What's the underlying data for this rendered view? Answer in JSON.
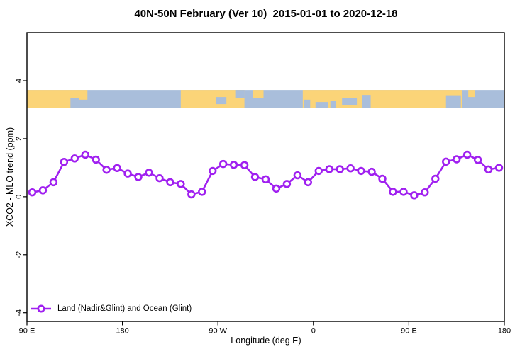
{
  "chart_data": {
    "type": "line",
    "title": "40N-50N February (Ver 10)  2015-01-01 to 2020-12-18",
    "xlabel": "Longitude (deg E)",
    "ylabel": "XCO2 - MLO trend (ppm)",
    "xlim": [
      90,
      540
    ],
    "ylim": [
      -4.3,
      5.66
    ],
    "grid": false,
    "x_ticks": [
      {
        "deg": 90,
        "label": "90 E"
      },
      {
        "deg": 180,
        "label": "180"
      },
      {
        "deg": 270,
        "label": "90 W"
      },
      {
        "deg": 360,
        "label": "0"
      },
      {
        "deg": 450,
        "label": "90 E"
      },
      {
        "deg": 540,
        "label": "180"
      }
    ],
    "y_ticks": [
      -4,
      -2,
      0,
      2,
      4
    ],
    "legend": {
      "label": "Land (Nadir&Glint) and Ocean (Glint)",
      "position": "bottom-left"
    },
    "series": [
      {
        "name": "Land (Nadir&Glint) and Ocean (Glint)",
        "color": "#A020F0",
        "marker": "open-circle",
        "x": [
          95,
          105,
          115,
          125,
          135,
          145,
          155,
          165,
          175,
          185,
          195,
          205,
          215,
          225,
          235,
          245,
          255,
          265,
          275,
          285,
          295,
          305,
          315,
          325,
          335,
          345,
          355,
          365,
          375,
          385,
          395,
          405,
          415,
          425,
          435,
          445,
          455,
          465,
          475,
          485,
          495,
          505,
          515,
          525,
          535
        ],
        "y": [
          0.15,
          0.22,
          0.5,
          1.2,
          1.32,
          1.45,
          1.28,
          0.93,
          0.99,
          0.8,
          0.68,
          0.83,
          0.64,
          0.5,
          0.44,
          0.08,
          0.17,
          0.89,
          1.13,
          1.1,
          1.09,
          0.68,
          0.6,
          0.28,
          0.44,
          0.74,
          0.5,
          0.89,
          0.95,
          0.95,
          0.98,
          0.89,
          0.86,
          0.62,
          0.17,
          0.17,
          0.05,
          0.15,
          0.62,
          1.21,
          1.29,
          1.45,
          1.27,
          0.94,
          1.0
        ]
      }
    ],
    "map_strip": {
      "value_top": 3.68,
      "value_bottom": 3.07,
      "ocean_color": "#A9BEDB",
      "land_color": "#FBD478",
      "land_segments_deg": [
        [
          90,
          139
        ],
        [
          235,
          295
        ],
        [
          350,
          500
        ]
      ],
      "ocean_patches_deg": [
        [
          131,
          139,
          45,
          55
        ],
        [
          268,
          278,
          40,
          40
        ],
        [
          287,
          295,
          0,
          45
        ],
        [
          351,
          357,
          55,
          45
        ],
        [
          362,
          374,
          68,
          32
        ],
        [
          376,
          381,
          62,
          38
        ],
        [
          387,
          401,
          45,
          40
        ],
        [
          406,
          414,
          28,
          72
        ],
        [
          485,
          499,
          30,
          70
        ]
      ],
      "land_patches_deg": [
        [
          139,
          147,
          0,
          55
        ],
        [
          303,
          313,
          0,
          45
        ],
        [
          506,
          512,
          0,
          40
        ]
      ]
    }
  }
}
